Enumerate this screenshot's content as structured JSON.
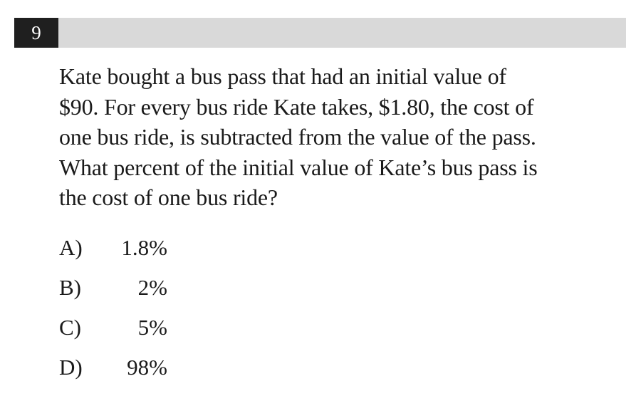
{
  "question": {
    "number": "9",
    "lines": [
      "Kate bought a bus pass that had an initial value of",
      "$90. For every bus ride Kate takes, $1.80, the cost of",
      "one bus ride, is subtracted from the value of the pass.",
      "What percent of the initial value of Kate’s bus pass is",
      "the cost of one bus ride?"
    ]
  },
  "choices": [
    {
      "letter": "A)",
      "value": "1.8%"
    },
    {
      "letter": "B)",
      "value": "2%"
    },
    {
      "letter": "C)",
      "value": "5%"
    },
    {
      "letter": "D)",
      "value": "98%"
    }
  ]
}
